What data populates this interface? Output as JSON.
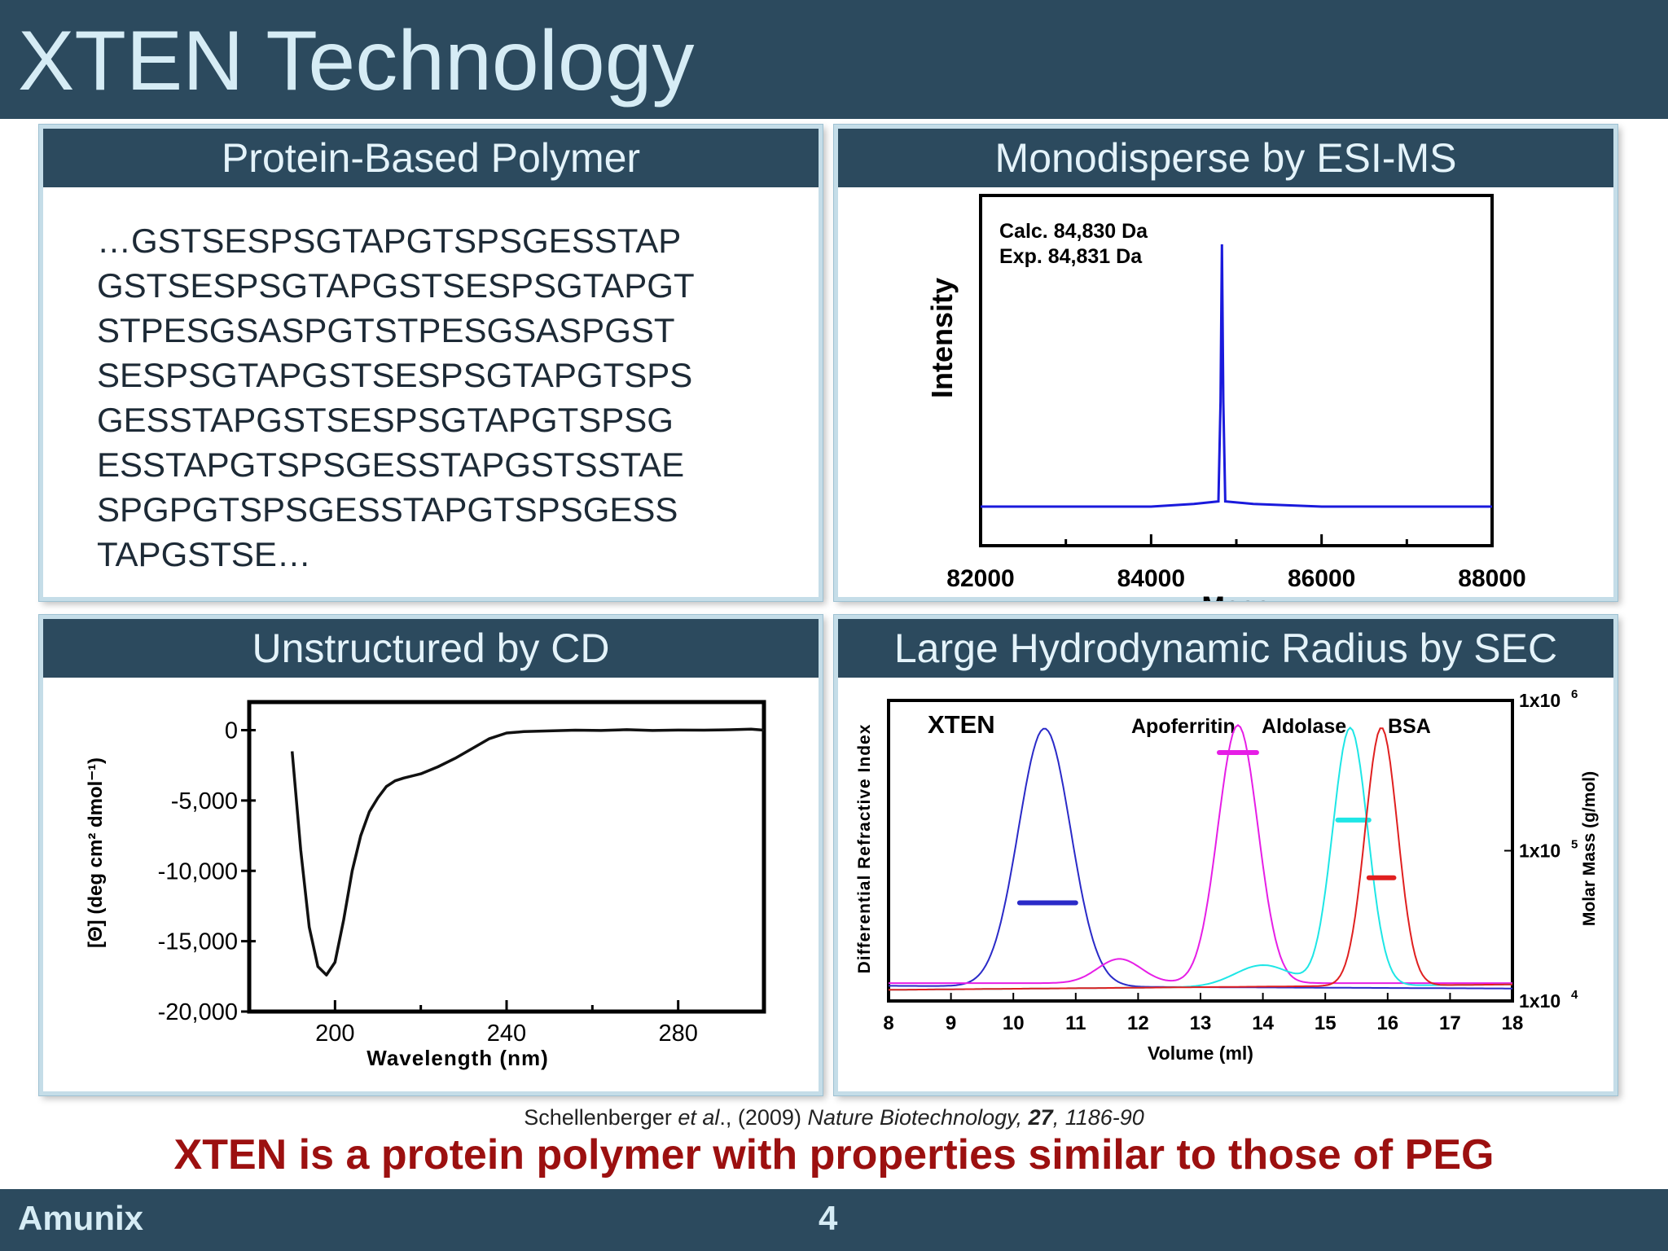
{
  "slide": {
    "title": "XTEN Technology",
    "footer_brand": "Amunix",
    "page_number": "4",
    "citation": {
      "authors": "Schellenberger ",
      "etal": "et al",
      "year": "., (2009) ",
      "journal": "Nature Biotechnology,",
      "volume": "27",
      "pages": ", 1186-90"
    },
    "tagline": "XTEN is a protein polymer with properties similar to those of PEG"
  },
  "panels": {
    "polymer": {
      "header": "Protein-Based Polymer",
      "sequence_lines": [
        "…GSTSESPSGTAPGTSPSGESSTAP",
        "GSTSESPSGTAPGSTSESPSGTAPGT",
        "STPESGSASPGTSTPESGSASPGST",
        "SESPSGTAPGSTSESPSGTAPGTSPS",
        "GESSTAPGSTSESPSGTAPGTSPSG",
        "ESSTAPGTSPSGESSTAPGSTSSTAE",
        "SPGPGTSPSGESSTAPGTSPSGESS",
        "TAPGSTSE…"
      ]
    },
    "esims": {
      "header": "Monodisperse by ESI-MS"
    },
    "cd": {
      "header": "Unstructured by CD"
    },
    "sec": {
      "header": "Large Hydrodynamic Radius by SEC"
    }
  },
  "chart_data": [
    {
      "type": "line",
      "xlabel": "Mass",
      "ylabel": "Intensity",
      "xlim": [
        82000,
        88000
      ],
      "xticks": [
        82000,
        84000,
        86000,
        88000
      ],
      "xtick_labels": [
        "82000",
        "84000",
        "86000",
        "88000"
      ],
      "annotations": [
        "Calc. 84,830 Da",
        "Exp.  84,831 Da"
      ],
      "color": "#1a1adc",
      "series": [
        {
          "x": [
            82000,
            83000,
            84000,
            84500,
            84790,
            84815,
            84831,
            84847,
            84870,
            85200,
            86000,
            87000,
            88000
          ],
          "y": [
            0,
            0,
            0,
            0.01,
            0.02,
            0.4,
            1.0,
            0.4,
            0.02,
            0.01,
            0,
            0,
            0
          ]
        }
      ]
    },
    {
      "type": "line",
      "xlabel": "Wavelength (nm)",
      "ylabel": "[Θ] (deg cm² dmol⁻¹)",
      "xlim": [
        180,
        300
      ],
      "ylim": [
        -20000,
        2000
      ],
      "xticks": [
        200,
        240,
        280
      ],
      "xtick_labels": [
        "200",
        "240",
        "280"
      ],
      "yticks": [
        0,
        -5000,
        -10000,
        -15000,
        -20000
      ],
      "ytick_labels": [
        "0",
        "-5,000",
        "-10,000",
        "-15,000",
        "-20,000"
      ],
      "color": "#111111",
      "series": [
        {
          "x": [
            190,
            192,
            194,
            196,
            198,
            200,
            202,
            204,
            206,
            208,
            210,
            212,
            214,
            216,
            220,
            224,
            228,
            232,
            236,
            240,
            244,
            250,
            256,
            262,
            268,
            274,
            280,
            286,
            292,
            297,
            300
          ],
          "y": [
            -1500,
            -8500,
            -14000,
            -16800,
            -17400,
            -16500,
            -13500,
            -10000,
            -7500,
            -5800,
            -4800,
            -4000,
            -3600,
            -3400,
            -3100,
            -2600,
            -2000,
            -1300,
            -600,
            -200,
            -100,
            -50,
            0,
            -20,
            40,
            -20,
            10,
            0,
            30,
            80,
            0
          ]
        }
      ]
    },
    {
      "type": "line",
      "xlabel": "Volume (ml)",
      "ylabel": "Differential Refractive Index",
      "y2label": "Molar Mass (g/mol)",
      "xlim": [
        8,
        18
      ],
      "xticks": [
        8,
        9,
        10,
        11,
        12,
        13,
        14,
        15,
        16,
        17,
        18
      ],
      "xtick_labels": [
        "8",
        "9",
        "10",
        "11",
        "12",
        "13",
        "14",
        "15",
        "16",
        "17",
        "18"
      ],
      "y2ticks": [
        10000,
        100000,
        1000000
      ],
      "y2tick_labels": [
        "1x10",
        "1x10",
        "1x10"
      ],
      "y2tick_exponents": [
        "4",
        "5",
        "6"
      ],
      "y2_scale": "log",
      "series": [
        {
          "name": "XTEN",
          "color": "#2a2ac8",
          "peak": 10.5,
          "width": 0.42,
          "height": 0.96,
          "mass_range": [
            10.1,
            11.0
          ],
          "mass": 45000
        },
        {
          "name": "Apoferritin",
          "color": "#e61ee6",
          "peak": 13.6,
          "width": 0.32,
          "height": 0.96,
          "mass_range": [
            13.3,
            13.9
          ],
          "mass": 450000
        },
        {
          "name": "Aldolase",
          "color": "#1ee6e6",
          "peak": 15.4,
          "width": 0.28,
          "height": 0.96,
          "mass_range": [
            15.2,
            15.7
          ],
          "mass": 160000
        },
        {
          "name": "BSA",
          "color": "#e02020",
          "peak": 15.9,
          "width": 0.26,
          "height": 0.96,
          "mass_range": [
            15.7,
            16.1
          ],
          "mass": 66000
        }
      ]
    }
  ]
}
